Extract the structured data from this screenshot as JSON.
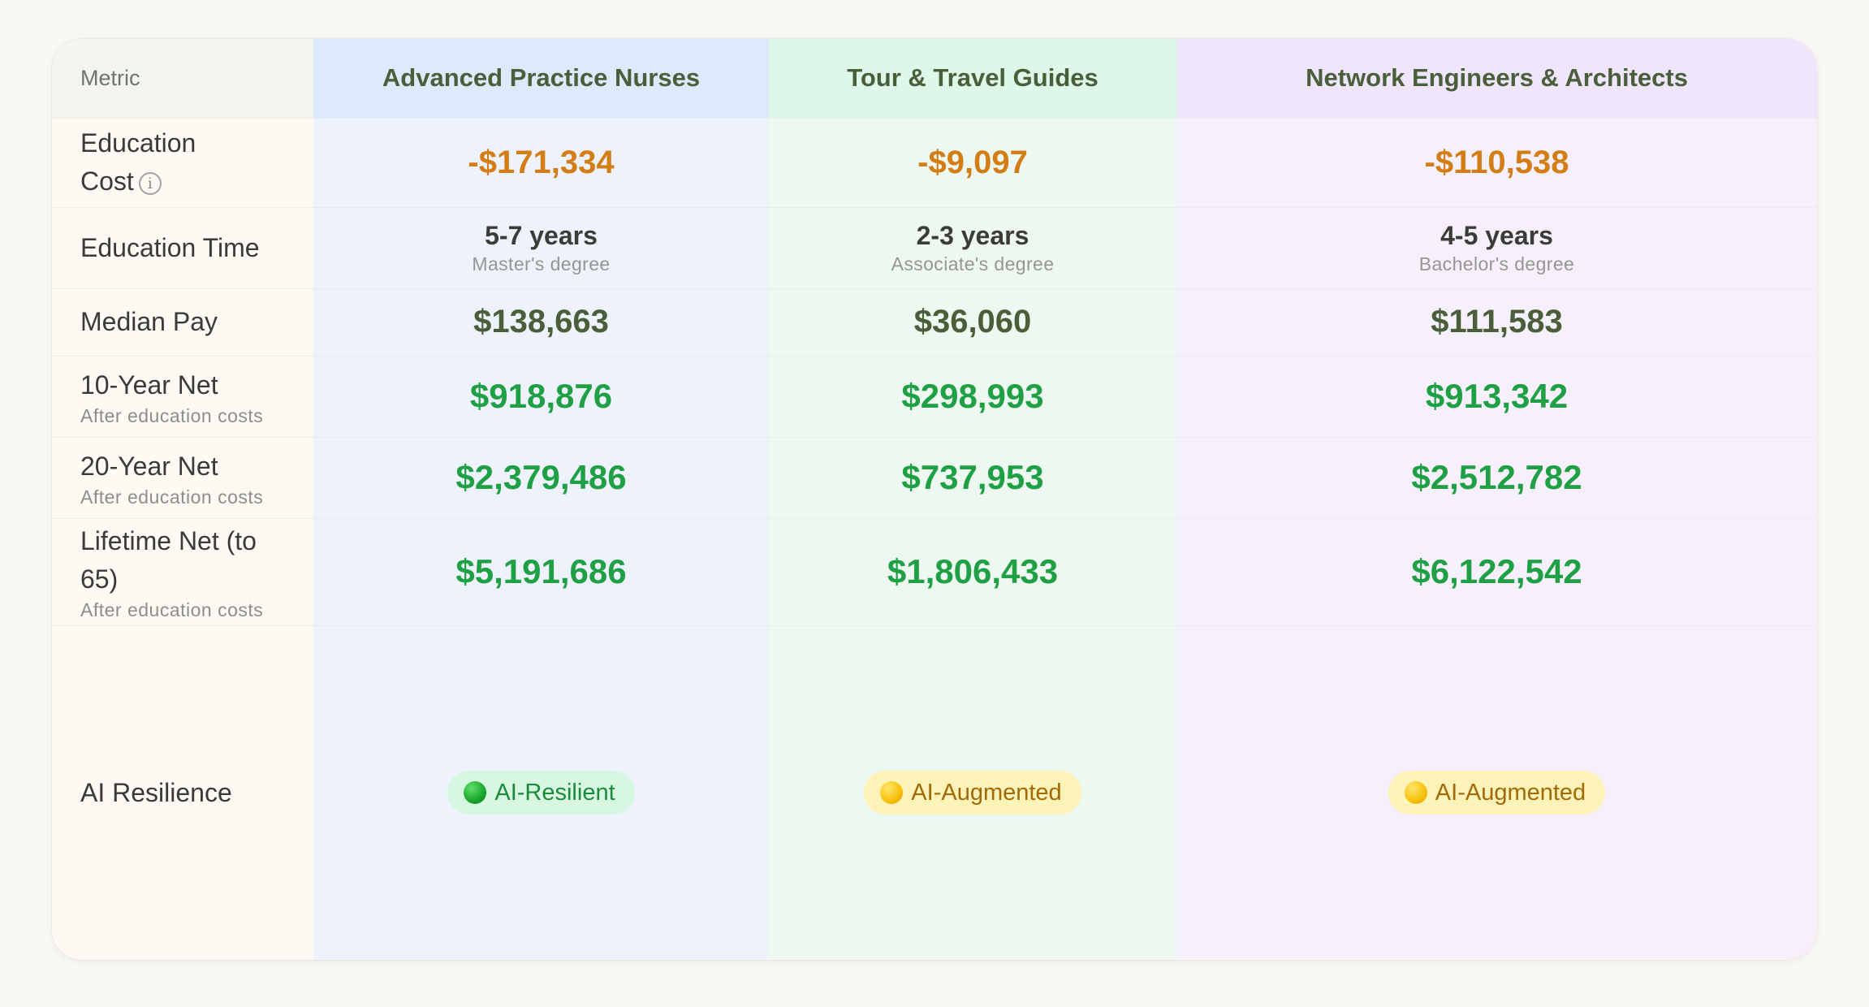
{
  "table": {
    "header": {
      "metric": "Metric",
      "columns": [
        "Advanced Practice Nurses",
        "Tour & Travel Guides",
        "Network Engineers & Architects"
      ]
    },
    "rows": {
      "education_cost": {
        "label_line1": "Education",
        "label_line2": "Cost",
        "info_icon": "i",
        "values": [
          "-$171,334",
          "-$9,097",
          "-$110,538"
        ]
      },
      "education_time": {
        "label": "Education Time",
        "values": [
          {
            "years": "5-7 years",
            "degree": "Master's degree"
          },
          {
            "years": "2-3 years",
            "degree": "Associate's degree"
          },
          {
            "years": "4-5 years",
            "degree": "Bachelor's degree"
          }
        ]
      },
      "median_pay": {
        "label": "Median Pay",
        "values": [
          "$138,663",
          "$36,060",
          "$111,583"
        ]
      },
      "net_10": {
        "label": "10-Year Net",
        "sub": "After education costs",
        "values": [
          "$918,876",
          "$298,993",
          "$913,342"
        ]
      },
      "net_20": {
        "label": "20-Year Net",
        "sub": "After education costs",
        "values": [
          "$2,379,486",
          "$737,953",
          "$2,512,782"
        ]
      },
      "lifetime": {
        "label_line1": "Lifetime Net (to",
        "label_line2": "65)",
        "sub": "After education costs",
        "values": [
          "$5,191,686",
          "$1,806,433",
          "$6,122,542"
        ]
      },
      "ai_resilience": {
        "label": "AI Resilience",
        "values": [
          {
            "text": "AI-Resilient",
            "status": "green"
          },
          {
            "text": "AI-Augmented",
            "status": "yellow"
          },
          {
            "text": "AI-Augmented",
            "status": "yellow"
          }
        ]
      }
    }
  },
  "colors": {
    "page_bg": "#f9f7f2",
    "col_a": "#edf2fc",
    "col_b": "#edf9f0",
    "col_c": "#f6f0fc",
    "cost": "#d57d15",
    "positive": "#1fa044",
    "pay": "#4a5e3a"
  }
}
